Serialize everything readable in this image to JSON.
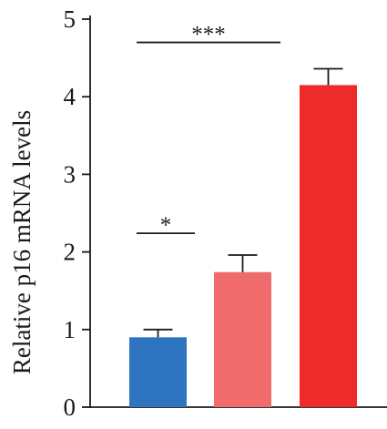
{
  "chart_data": {
    "type": "bar",
    "title": "",
    "xlabel": "",
    "ylabel": "Relative p16 mRNA levels",
    "ylim": [
      0,
      5
    ],
    "yticks": [
      "0",
      "1",
      "2",
      "3",
      "4",
      "5"
    ],
    "categories": [
      "",
      "",
      ""
    ],
    "values": [
      0.9,
      1.74,
      4.15
    ],
    "errors": [
      0.1,
      0.22,
      0.21
    ],
    "colors": [
      "#2e74c0",
      "#f06b6b",
      "#ee2a2a"
    ],
    "grid": false,
    "legend": "none",
    "significance": [
      {
        "from": 0,
        "to": 1,
        "label": "*",
        "level": 2.24
      },
      {
        "from": 0,
        "to": 2,
        "label": "***",
        "level": 4.7
      }
    ]
  }
}
